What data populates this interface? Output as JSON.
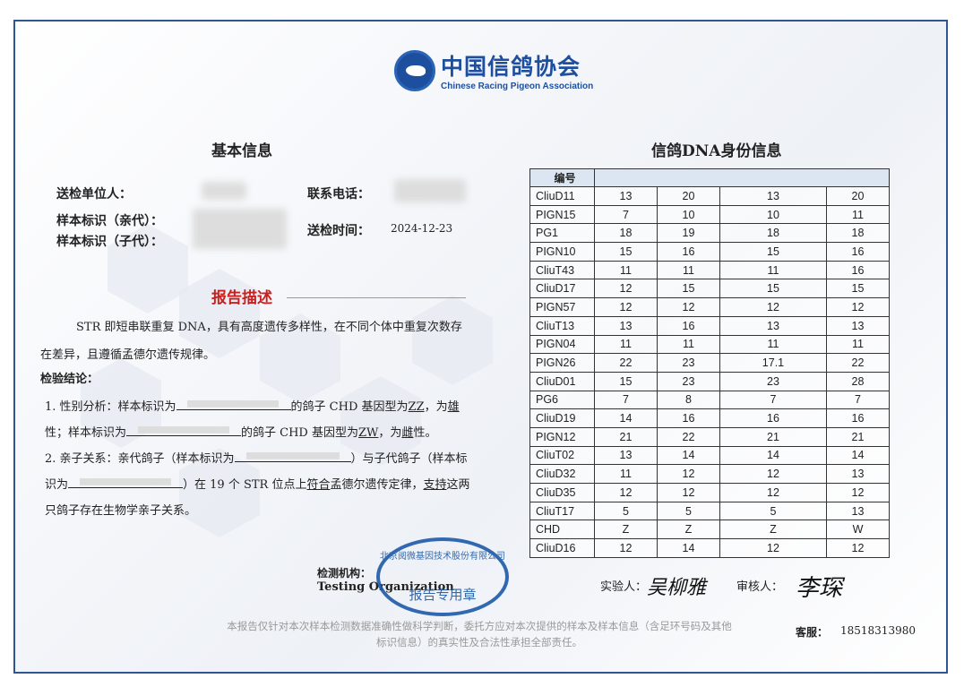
{
  "header": {
    "org_cn": "中国信鸽协会",
    "org_en": "Chinese Racing Pigeon Association",
    "logo_icon": "pigeon-logo-icon",
    "brand_color": "#1e4f9e"
  },
  "basic": {
    "title": "基本信息",
    "sender_label": "送检单位人：",
    "phone_label": "联系电话：",
    "parent_label": "样本标识（亲代）：",
    "child_label": "样本标识（子代）：",
    "time_label": "送检时间：",
    "time_value": "2024-12-23"
  },
  "report": {
    "title": "报告描述",
    "para": "STR 即短串联重复 DNA，具有高度遗传多样性，在不同个体中重复次数存在差异，且遵循孟德尔遗传规律。",
    "conclusion_title": "检验结论：",
    "c1a": "1. 性别分析：样本标识为",
    "c1b": "的鸽子 CHD 基因型为",
    "c1_gt1": "ZZ",
    "c1c": "，为",
    "c1_sex1": "雄",
    "c1d": "性；样本标识为",
    "c1e": "的鸽子 CHD 基因型为",
    "c1_gt2": "ZW",
    "c1f": "，为",
    "c1_sex2": "雌",
    "c1g": "性。",
    "c2a": "2. 亲子关系：亲代鸽子（样本标识为",
    "c2b": "）与子代鸽子（样本标识为",
    "c2c": "）在 19 个 STR 位点上",
    "c2_fit": "符合",
    "c2d": "孟德尔遗传定律，",
    "c2_support": "支持",
    "c2e": "这两只鸽子存在生物学亲子关系。"
  },
  "dna": {
    "title": "信鸽DNA身份信息",
    "header_label": "编号",
    "rows": [
      [
        "CliuD11",
        "13",
        "20",
        "13",
        "20"
      ],
      [
        "PIGN15",
        "7",
        "10",
        "10",
        "11"
      ],
      [
        "PG1",
        "18",
        "19",
        "18",
        "18"
      ],
      [
        "PIGN10",
        "15",
        "16",
        "15",
        "16"
      ],
      [
        "CliuT43",
        "11",
        "11",
        "11",
        "16"
      ],
      [
        "CliuD17",
        "12",
        "15",
        "15",
        "15"
      ],
      [
        "PIGN57",
        "12",
        "12",
        "12",
        "12"
      ],
      [
        "CliuT13",
        "13",
        "16",
        "13",
        "13"
      ],
      [
        "PIGN04",
        "11",
        "11",
        "11",
        "11"
      ],
      [
        "PIGN26",
        "22",
        "23",
        "17.1",
        "22"
      ],
      [
        "CliuD01",
        "15",
        "23",
        "23",
        "28"
      ],
      [
        "PG6",
        "7",
        "8",
        "7",
        "7"
      ],
      [
        "CliuD19",
        "14",
        "16",
        "16",
        "16"
      ],
      [
        "PIGN12",
        "21",
        "22",
        "21",
        "21"
      ],
      [
        "CliuT02",
        "13",
        "14",
        "14",
        "14"
      ],
      [
        "CliuD32",
        "11",
        "12",
        "12",
        "13"
      ],
      [
        "CliuD35",
        "12",
        "12",
        "12",
        "12"
      ],
      [
        "CliuT17",
        "5",
        "5",
        "5",
        "13"
      ],
      [
        "CHD",
        "Z",
        "Z",
        "Z",
        "W"
      ],
      [
        "CliuD16",
        "12",
        "14",
        "12",
        "12"
      ]
    ]
  },
  "footer": {
    "org_label": "检测机构：",
    "org_label_en": "Testing Organization",
    "stamp_ring": "北京阅微基因技术股份有限公司",
    "stamp_center": "报告专用章",
    "tester_label": "实验人：",
    "tester_sig": "吴柳雅",
    "reviewer_label": "审核人：",
    "reviewer_sig": "李琛",
    "disclaimer": "本报告仅针对本次样本检测数据准确性做科学判断，委托方应对本次提供的样本及样本信息（含足环号码及其他标识信息）的真实性及合法性承担全部责任。",
    "service_label": "客服：",
    "service_phone": "18518313980",
    "stamp_color": "#1d5aa8"
  }
}
